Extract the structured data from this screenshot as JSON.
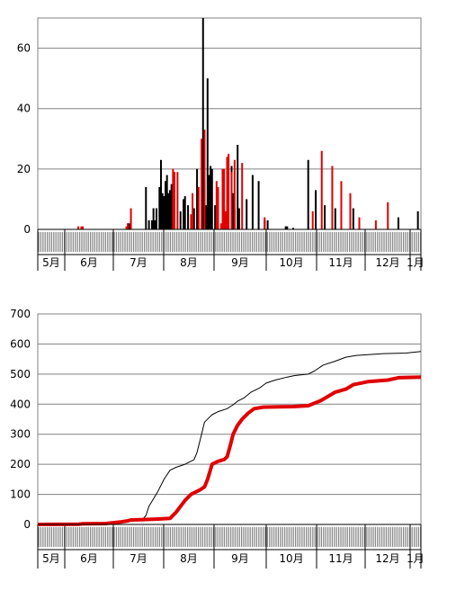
{
  "chart_data": [
    {
      "type": "bar",
      "ylim": [
        0,
        70
      ],
      "yticks": [
        0,
        20,
        40,
        60
      ],
      "grid": "horizontal",
      "legend": "none",
      "month_labels": [
        "5月",
        "6月",
        "7月",
        "8月",
        "9月",
        "10月",
        "11月",
        "12月",
        "1月"
      ],
      "x_range_days": 255,
      "series": [
        {
          "color": "#000000",
          "points": [
            [
              60,
              2
            ],
            [
              61,
              2
            ],
            [
              72,
              14
            ],
            [
              74,
              3
            ],
            [
              76,
              3
            ],
            [
              77,
              7
            ],
            [
              78,
              3
            ],
            [
              79,
              7
            ],
            [
              81,
              14
            ],
            [
              82,
              23
            ],
            [
              83,
              12
            ],
            [
              84,
              11
            ],
            [
              85,
              16
            ],
            [
              86,
              18
            ],
            [
              87,
              12
            ],
            [
              88,
              13
            ],
            [
              89,
              15
            ],
            [
              95,
              6
            ],
            [
              97,
              10
            ],
            [
              98,
              11
            ],
            [
              100,
              8
            ],
            [
              104,
              7
            ],
            [
              106,
              20
            ],
            [
              107,
              14
            ],
            [
              109,
              3
            ],
            [
              110,
              70
            ],
            [
              111,
              16
            ],
            [
              112,
              8
            ],
            [
              113,
              50
            ],
            [
              114,
              18
            ],
            [
              115,
              21
            ],
            [
              116,
              20
            ],
            [
              118,
              8
            ],
            [
              119,
              7
            ],
            [
              124,
              8
            ],
            [
              125,
              5
            ],
            [
              126,
              4
            ],
            [
              129,
              21
            ],
            [
              130,
              12
            ],
            [
              131,
              7
            ],
            [
              133,
              28
            ],
            [
              134,
              7
            ],
            [
              139,
              10
            ],
            [
              143,
              18
            ],
            [
              147,
              16
            ],
            [
              151,
              3
            ],
            [
              153,
              3
            ],
            [
              165,
              1
            ],
            [
              166,
              1
            ],
            [
              170,
              0.5
            ],
            [
              180,
              23
            ],
            [
              185,
              13
            ],
            [
              191,
              8
            ],
            [
              198,
              7
            ],
            [
              210,
              7
            ],
            [
              240,
              4
            ],
            [
              253,
              6
            ]
          ]
        },
        {
          "color": "#e00000",
          "points": [
            [
              27,
              1
            ],
            [
              29,
              1
            ],
            [
              30,
              1
            ],
            [
              59,
              1
            ],
            [
              60,
              2
            ],
            [
              62,
              7
            ],
            [
              90,
              20
            ],
            [
              91,
              19
            ],
            [
              93,
              19
            ],
            [
              102,
              5
            ],
            [
              103,
              12
            ],
            [
              107,
              14
            ],
            [
              109,
              30
            ],
            [
              111,
              33
            ],
            [
              119,
              16
            ],
            [
              120,
              14
            ],
            [
              122,
              2
            ],
            [
              123,
              20
            ],
            [
              124,
              20
            ],
            [
              125,
              6
            ],
            [
              126,
              24
            ],
            [
              127,
              25
            ],
            [
              129,
              19
            ],
            [
              131,
              23
            ],
            [
              136,
              22
            ],
            [
              151,
              4
            ],
            [
              183,
              6
            ],
            [
              189,
              26
            ],
            [
              196,
              21
            ],
            [
              202,
              16
            ],
            [
              208,
              12
            ],
            [
              214,
              4
            ],
            [
              225,
              3
            ],
            [
              233,
              9
            ]
          ]
        }
      ]
    },
    {
      "type": "line",
      "ylim": [
        0,
        700
      ],
      "yticks": [
        0,
        100,
        200,
        300,
        400,
        500,
        600,
        700
      ],
      "grid": "horizontal",
      "legend": "none",
      "month_labels": [
        "5月",
        "6月",
        "7月",
        "8月",
        "9月",
        "10月",
        "11月",
        "12月",
        "1月"
      ],
      "x_range_days": 255,
      "series": [
        {
          "color": "#000000",
          "points": [
            [
              0,
              0
            ],
            [
              27,
              0
            ],
            [
              50,
              8
            ],
            [
              60,
              12
            ],
            [
              62,
              14
            ],
            [
              70,
              18
            ],
            [
              72,
              30
            ],
            [
              74,
              60
            ],
            [
              80,
              110
            ],
            [
              84,
              150
            ],
            [
              88,
              180
            ],
            [
              92,
              190
            ],
            [
              98,
              200
            ],
            [
              104,
              215
            ],
            [
              106,
              240
            ],
            [
              109,
              300
            ],
            [
              111,
              340
            ],
            [
              114,
              355
            ],
            [
              116,
              365
            ],
            [
              120,
              375
            ],
            [
              126,
              385
            ],
            [
              130,
              398
            ],
            [
              133,
              410
            ],
            [
              137,
              420
            ],
            [
              142,
              440
            ],
            [
              148,
              455
            ],
            [
              152,
              470
            ],
            [
              158,
              480
            ],
            [
              166,
              490
            ],
            [
              171,
              495
            ],
            [
              180,
              500
            ],
            [
              184,
              510
            ],
            [
              190,
              530
            ],
            [
              198,
              543
            ],
            [
              205,
              556
            ],
            [
              212,
              562
            ],
            [
              230,
              568
            ],
            [
              245,
              570
            ],
            [
              255,
              575
            ]
          ]
        },
        {
          "color": "#e00000",
          "points": [
            [
              0,
              0
            ],
            [
              27,
              1
            ],
            [
              30,
              2
            ],
            [
              45,
              3
            ],
            [
              55,
              8
            ],
            [
              60,
              12
            ],
            [
              62,
              15
            ],
            [
              68,
              16
            ],
            [
              80,
              18
            ],
            [
              88,
              20
            ],
            [
              92,
              40
            ],
            [
              95,
              60
            ],
            [
              98,
              80
            ],
            [
              102,
              100
            ],
            [
              108,
              115
            ],
            [
              111,
              125
            ],
            [
              113,
              150
            ],
            [
              116,
              200
            ],
            [
              120,
              210
            ],
            [
              124,
              216
            ],
            [
              126,
              225
            ],
            [
              128,
              260
            ],
            [
              130,
              300
            ],
            [
              133,
              330
            ],
            [
              136,
              350
            ],
            [
              140,
              370
            ],
            [
              144,
              385
            ],
            [
              150,
              390
            ],
            [
              160,
              391
            ],
            [
              170,
              392
            ],
            [
              180,
              395
            ],
            [
              183,
              401
            ],
            [
              188,
              411
            ],
            [
              193,
              425
            ],
            [
              198,
              440
            ],
            [
              205,
              450
            ],
            [
              210,
              465
            ],
            [
              215,
              470
            ],
            [
              220,
              475
            ],
            [
              233,
              480
            ],
            [
              240,
              488
            ],
            [
              255,
              490
            ]
          ]
        }
      ]
    }
  ]
}
